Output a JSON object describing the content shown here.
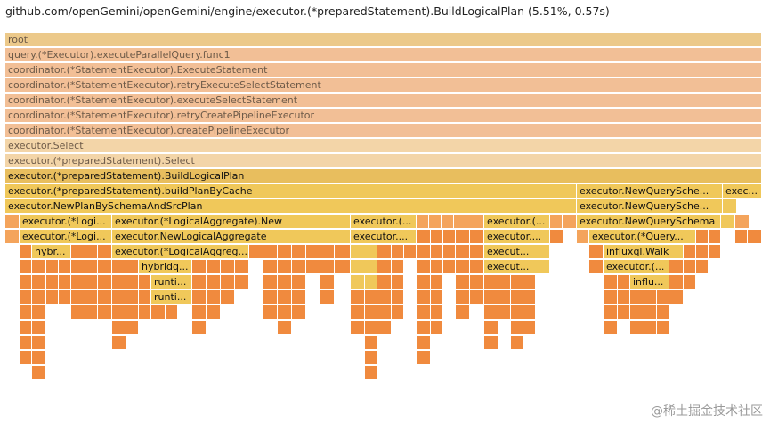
{
  "header": {
    "title": "github.com/openGemini/openGemini/engine/executor.(*preparedStatement).BuildLogicalPlan (5.51%, 0.57s)"
  },
  "colors": {
    "root": "#ecc98a",
    "ancestor": "#f2bf96",
    "ancestor_light": "#f3d5a8",
    "selected": "#e8be5e",
    "warm": "#f0c85a",
    "mid": "#f4a45c",
    "hot": "#f08a3e"
  },
  "frames": {
    "root": "root",
    "f1": "query.(*Executor).executeParallelQuery.func1",
    "f2": "coordinator.(*StatementExecutor).ExecuteStatement",
    "f3": "coordinator.(*StatementExecutor).retryExecuteSelectStatement",
    "f4": "coordinator.(*StatementExecutor).executeSelectStatement",
    "f5": "coordinator.(*StatementExecutor).retryCreatePipelineExecutor",
    "f6": "coordinator.(*StatementExecutor).createPipelineExecutor",
    "f7": "executor.Select",
    "f8": "executor.(*preparedStatement).Select",
    "f9": "executor.(*preparedStatement).BuildLogicalPlan",
    "f10": "executor.(*preparedStatement).buildPlanByCache",
    "f10b": "executor.NewQuerySche...",
    "f10c": "exec...",
    "f11": "executor.NewPlanBySchemaAndSrcPlan",
    "f11b": "executor.NewQuerySche...",
    "f12a": "executor.(*Logi...",
    "f12b": "executor.(*LogicalAggregate).New",
    "f12c": "executor.(...",
    "f12d": "executor.(...",
    "f12e": "executor.NewQuerySchema",
    "f13a": "executor.(*Logi...",
    "f13b": "executor.NewLogicalAggregate",
    "f13c": "executor....",
    "f13d": "executor....",
    "f13e": "executor.(*Query...",
    "f14a": "hybr...",
    "f14b": "executor.(*LogicalAggreg...",
    "f14c": "execut...",
    "f14d": "influxql.Walk",
    "f15a": "hybridq...",
    "f15b": "execut...",
    "f15c": "executor.(...",
    "f16a": "runti...",
    "f16b": "influ...",
    "f17a": "runti..."
  },
  "watermark": "@稀土掘金技术社区"
}
